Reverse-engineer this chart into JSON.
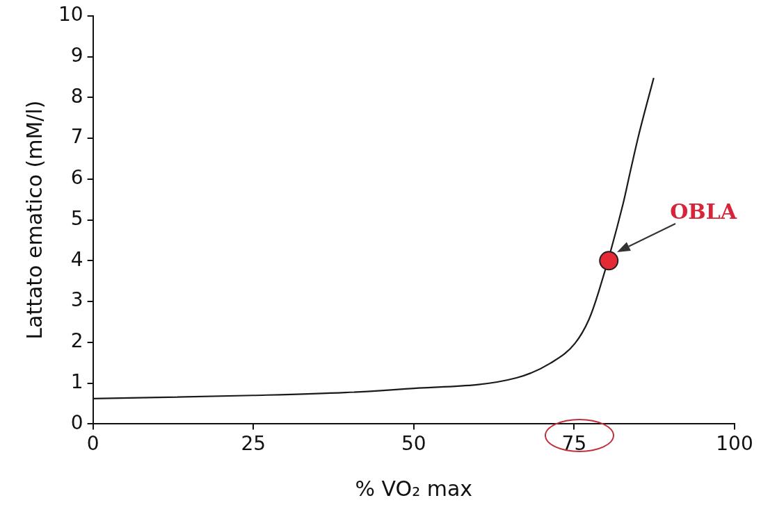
{
  "chart_data": {
    "type": "line",
    "xlabel": "% VO₂ max",
    "ylabel": "Lattato ematico (mM/l)",
    "xlim": [
      0,
      100
    ],
    "xticks": [
      0,
      25,
      50,
      75,
      100
    ],
    "ylim": [
      0,
      10
    ],
    "yticks": [
      0,
      1,
      2,
      3,
      4,
      5,
      6,
      7,
      8,
      9,
      10
    ],
    "grid": false,
    "legend": false,
    "series": [
      {
        "color": "#1a1a1a",
        "marker": "none",
        "x": [
          0,
          24.9,
          39.3,
          48.7,
          66.0,
          71.3,
          75.1,
          77.3,
          78.8,
          82.6,
          83.7,
          85.0,
          87.4
        ],
        "values": [
          0.62,
          0.7,
          0.77,
          0.86,
          1.13,
          1.49,
          1.97,
          2.56,
          3.23,
          5.38,
          6.15,
          7.04,
          8.48
        ]
      },
      {
        "type": "scatter",
        "color": "#e52a35",
        "marker": "circle",
        "x": [
          80.4
        ],
        "values": [
          4.0
        ]
      }
    ],
    "annotations": [
      "OBLA"
    ]
  }
}
